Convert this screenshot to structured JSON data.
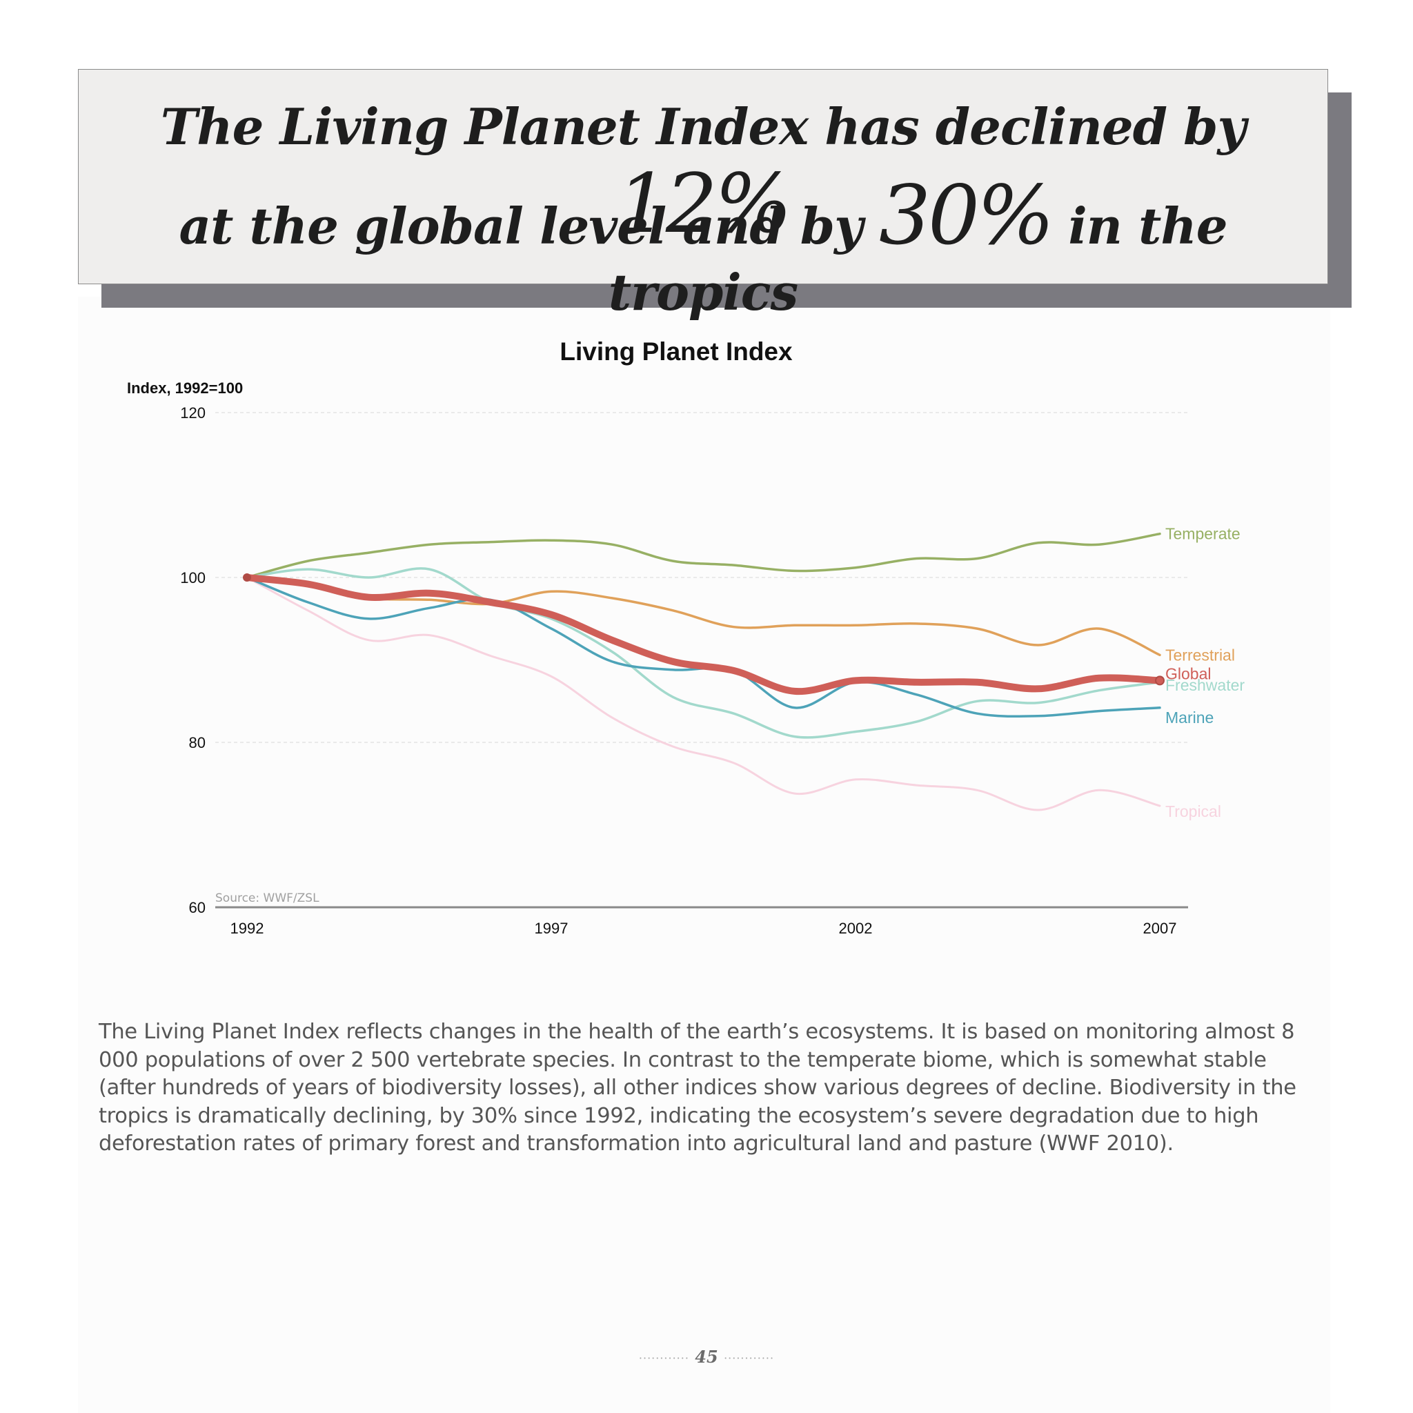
{
  "headline": {
    "line1_text": "The Living Planet Index has declined by ",
    "line1_big": "12%",
    "line2_pre": "at the global level and by ",
    "line2_big": "30%",
    "line2_post": " in the tropics"
  },
  "chart_data": {
    "type": "line",
    "title": "Living Planet Index",
    "ylabel": "Index, 1992=100",
    "xlabel": "",
    "source": "Source: WWF/ZSL",
    "x_ticks": [
      "1992",
      "1997",
      "2002",
      "2007"
    ],
    "y_ticks": [
      "60",
      "80",
      "100",
      "120"
    ],
    "xlim": [
      1991.5,
      2008.5
    ],
    "ylim": [
      60,
      120
    ],
    "x": [
      1992,
      1993,
      1994,
      1995,
      1996,
      1997,
      1998,
      1999,
      2000,
      2001,
      2002,
      2003,
      2004,
      2005,
      2006,
      2007
    ],
    "series": [
      {
        "name": "Temperate",
        "color": "#97b064",
        "width": 3.5,
        "values": [
          100,
          102,
          103,
          104,
          104.3,
          104.5,
          104,
          102,
          101.5,
          100.8,
          101.2,
          102.3,
          102.3,
          104.2,
          104,
          105.3
        ]
      },
      {
        "name": "Terrestrial",
        "color": "#e0a15a",
        "width": 3.5,
        "values": [
          100,
          99,
          97.5,
          97.3,
          96.8,
          98.3,
          97.5,
          96,
          94,
          94.2,
          94.2,
          94.4,
          93.8,
          91.8,
          93.8,
          90.6
        ]
      },
      {
        "name": "Tropical",
        "color": "#f7d3df",
        "width": 3,
        "values": [
          100,
          96,
          92.4,
          93,
          90.5,
          88,
          83,
          79.5,
          77.5,
          73.8,
          75.5,
          74.8,
          74.2,
          71.8,
          74.2,
          72.3
        ]
      },
      {
        "name": "Freshwater",
        "color": "#a2d9cc",
        "width": 3.5,
        "values": [
          100,
          101,
          100,
          101,
          97,
          95,
          91,
          85.5,
          83.5,
          80.7,
          81.3,
          82.5,
          85,
          84.8,
          86.3,
          87.3
        ]
      },
      {
        "name": "Marine",
        "color": "#4da3b8",
        "width": 3.5,
        "values": [
          100,
          97,
          95,
          96.3,
          97.3,
          93.8,
          89.8,
          88.8,
          88.7,
          84.2,
          87.3,
          85.8,
          83.5,
          83.2,
          83.8,
          84.2
        ]
      },
      {
        "name": "Global",
        "color": "#cf5f58",
        "width": 10,
        "values": [
          100,
          99.2,
          97.6,
          98.1,
          97,
          95.5,
          92.4,
          89.8,
          88.7,
          86.2,
          87.5,
          87.3,
          87.3,
          86.5,
          87.8,
          87.5
        ]
      }
    ]
  },
  "body_text": "The Living Planet Index reflects changes in the health of the earth’s ecosystems. It is based on monitoring almost 8 000 populations of over 2 500 vertebrate species. In contrast to the temperate biome, which is somewhat stable (after hundreds of years of biodiversity losses), all other indices show various degrees of decline. Biodiversity in the tropics is dramatically declining, by 30% since 1992, indicating the ecosystem’s severe degradation due to high deforestation rates of primary forest and transformation into agricultural land and pasture (WWF 2010).",
  "page_number": "45",
  "page_number_dots_left": "············",
  "page_number_dots_right": "············"
}
